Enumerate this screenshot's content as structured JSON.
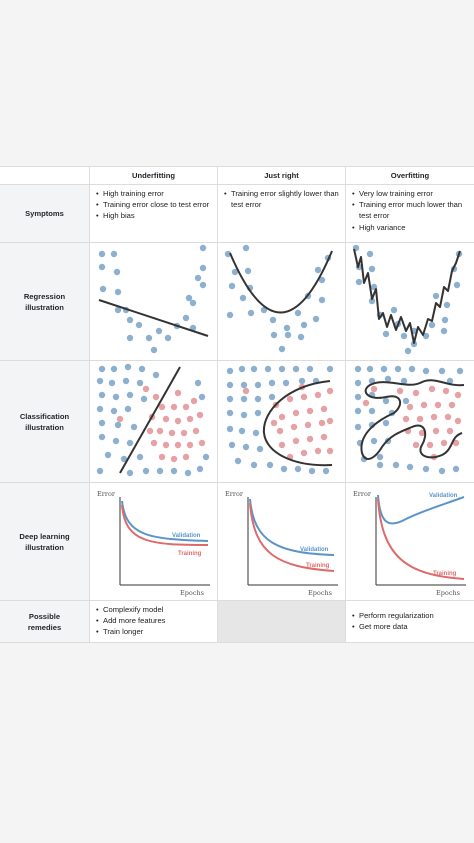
{
  "columns": [
    "Underfitting",
    "Just right",
    "Overfitting"
  ],
  "rows": {
    "symptoms": "Symptoms",
    "regression": "Regression illustration",
    "classification": "Classification illustration",
    "deep_learning": "Deep learning illustration",
    "remedies": "Possible remedies"
  },
  "symptoms": {
    "underfitting": [
      "High training error",
      "Training error close to test error",
      "High bias"
    ],
    "just_right": [
      "Training error slightly lower than test error"
    ],
    "overfitting": [
      "Very low training error",
      "Training error much lower than test error",
      "High variance"
    ]
  },
  "remedies": {
    "underfitting": [
      "Complexify model",
      "Add more features",
      "Train longer"
    ],
    "just_right": [],
    "overfitting": [
      "Perform regularization",
      "Get more data"
    ]
  },
  "deep_learning": {
    "y_axis": "Error",
    "x_axis": "Epochs",
    "validation_label": "Validation",
    "training_label": "Training"
  },
  "colors": {
    "blue_points": "#8db0cf",
    "red_points": "#e5a1a3",
    "validation_curve": "#5b95c8",
    "training_curve": "#de6b6b",
    "fit_line": "#333333",
    "label_bg": "#f3f4f6",
    "empty_cell": "#e6e6e6"
  }
}
